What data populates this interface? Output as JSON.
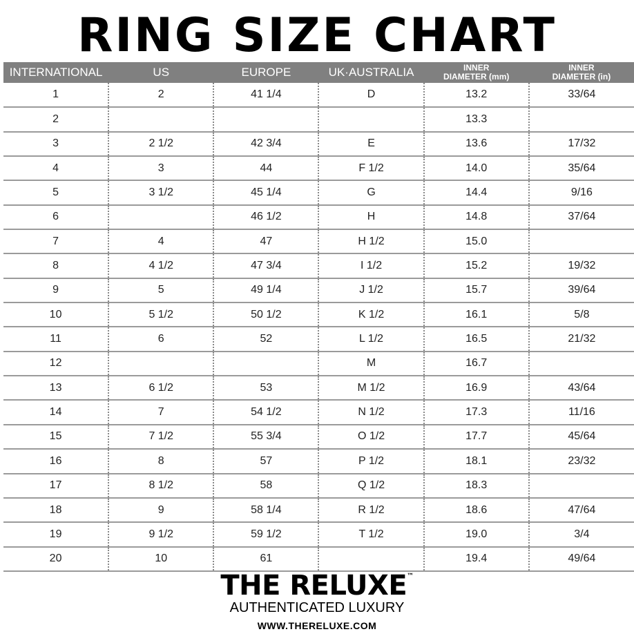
{
  "title": "RING SIZE CHART",
  "table": {
    "headers": [
      {
        "line1": "INTERNATIONAL",
        "line2": ""
      },
      {
        "line1": "US",
        "line2": ""
      },
      {
        "line1": "EUROPE",
        "line2": ""
      },
      {
        "line1": "UK·AUSTRALIA",
        "line2": ""
      },
      {
        "line1": "INNER",
        "line2": "DIAMETER (mm)"
      },
      {
        "line1": "INNER",
        "line2": "DIAMETER (in)"
      }
    ],
    "rows": [
      [
        "1",
        "2",
        "41 1/4",
        "D",
        "13.2",
        "33/64"
      ],
      [
        "2",
        "",
        "",
        "",
        "13.3",
        ""
      ],
      [
        "3",
        "2 1/2",
        "42 3/4",
        "E",
        "13.6",
        "17/32"
      ],
      [
        "4",
        "3",
        "44",
        "F 1/2",
        "14.0",
        "35/64"
      ],
      [
        "5",
        "3 1/2",
        "45 1/4",
        "G",
        "14.4",
        "9/16"
      ],
      [
        "6",
        "",
        "46 1/2",
        "H",
        "14.8",
        "37/64"
      ],
      [
        "7",
        "4",
        "47",
        "H 1/2",
        "15.0",
        ""
      ],
      [
        "8",
        "4 1/2",
        "47 3/4",
        "I 1/2",
        "15.2",
        "19/32"
      ],
      [
        "9",
        "5",
        "49 1/4",
        "J 1/2",
        "15.7",
        "39/64"
      ],
      [
        "10",
        "5 1/2",
        "50 1/2",
        "K 1/2",
        "16.1",
        "5/8"
      ],
      [
        "11",
        "6",
        "52",
        "L 1/2",
        "16.5",
        "21/32"
      ],
      [
        "12",
        "",
        "",
        "M",
        "16.7",
        ""
      ],
      [
        "13",
        "6 1/2",
        "53",
        "M 1/2",
        "16.9",
        "43/64"
      ],
      [
        "14",
        "7",
        "54 1/2",
        "N 1/2",
        "17.3",
        "11/16"
      ],
      [
        "15",
        "7 1/2",
        "55 3/4",
        "O 1/2",
        "17.7",
        "45/64"
      ],
      [
        "16",
        "8",
        "57",
        "P 1/2",
        "18.1",
        "23/32"
      ],
      [
        "17",
        "8 1/2",
        "58",
        "Q 1/2",
        "18.3",
        ""
      ],
      [
        "18",
        "9",
        "58 1/4",
        "R 1/2",
        "18.6",
        "47/64"
      ],
      [
        "19",
        "9 1/2",
        "59 1/2",
        "T 1/2",
        "19.0",
        "3/4"
      ],
      [
        "20",
        "10",
        "61",
        "",
        "19.4",
        "49/64"
      ]
    ]
  },
  "footer": {
    "brand": "THE RELUXE",
    "trademark": "™",
    "tagline": "AUTHENTICATED LUXURY",
    "url": "WWW.THERELUXE.COM"
  },
  "colors": {
    "header_bg": "#808080",
    "row_line": "#9a9a9a"
  }
}
